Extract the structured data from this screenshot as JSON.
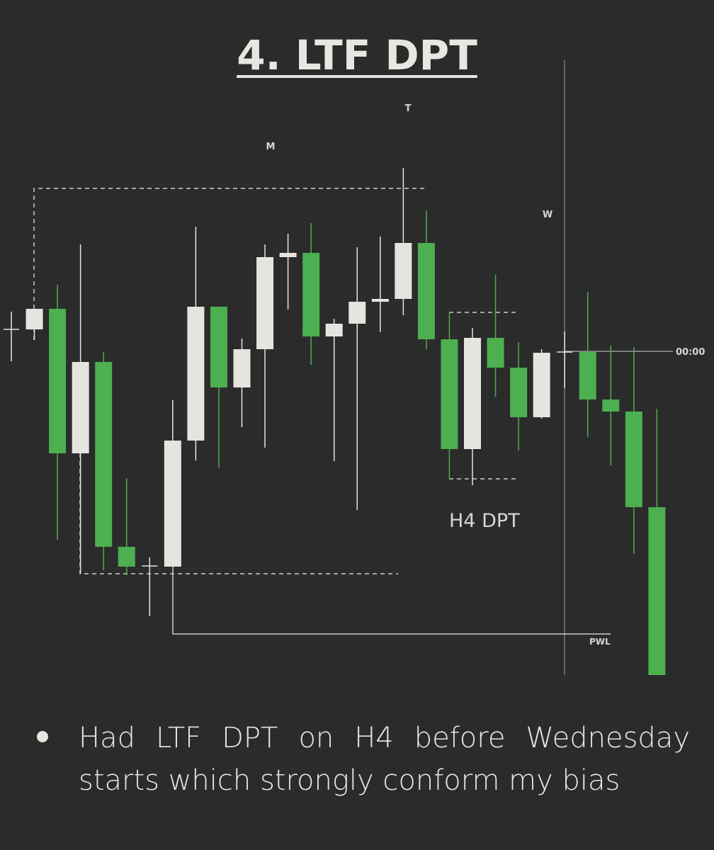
{
  "title": "4. LTF DPT",
  "bullet": "Had LTF DPT on H4 before Wednesday starts which strongly conform my bias",
  "chart_data": {
    "type": "candlestick",
    "annotations": [
      "M",
      "T",
      "W",
      "00:00",
      "PWL",
      "H4 DPT"
    ],
    "up_color": "#e6e4df",
    "down_color": "#4caf50",
    "ylim": [
      0,
      100
    ],
    "open": [
      53.5,
      53.5,
      56.4,
      36,
      48.9,
      22.8,
      20.1,
      20,
      37.8,
      56.7,
      45.3,
      50.7,
      63.7,
      64.3,
      52.5,
      54.3,
      57.4,
      57.8,
      65.7,
      52.1,
      36.6,
      52.3,
      48.1,
      41.1,
      50.3,
      50.3,
      43.6,
      41.9,
      28.4
    ],
    "high": [
      56,
      56.4,
      59.8,
      65.5,
      50.3,
      32.5,
      21.3,
      43.5,
      68,
      56.7,
      52.2,
      65.5,
      67,
      68.5,
      55,
      65.1,
      66.6,
      76.3,
      70.3,
      55.9,
      53.7,
      61.2,
      51.7,
      50.7,
      53.2,
      58.8,
      51.2,
      51,
      42.3
    ],
    "low": [
      49,
      52,
      23.8,
      19,
      19.5,
      18.8,
      13,
      20,
      35,
      34,
      39.7,
      36.8,
      56.3,
      48.5,
      34.9,
      28,
      53.1,
      55.5,
      50.7,
      32.4,
      31.5,
      44,
      36.4,
      40.9,
      45.2,
      38.3,
      34.3,
      21.8,
      4.7
    ],
    "close": [
      53.5,
      56.4,
      36,
      48.9,
      22.8,
      20,
      20.1,
      37.8,
      56.7,
      45.3,
      50.7,
      63.7,
      64.3,
      52.5,
      54.3,
      57.4,
      57.8,
      65.7,
      52.1,
      36.6,
      52.3,
      48.1,
      41.1,
      50.2,
      50.3,
      43.6,
      41.9,
      28.4,
      4.7
    ]
  }
}
